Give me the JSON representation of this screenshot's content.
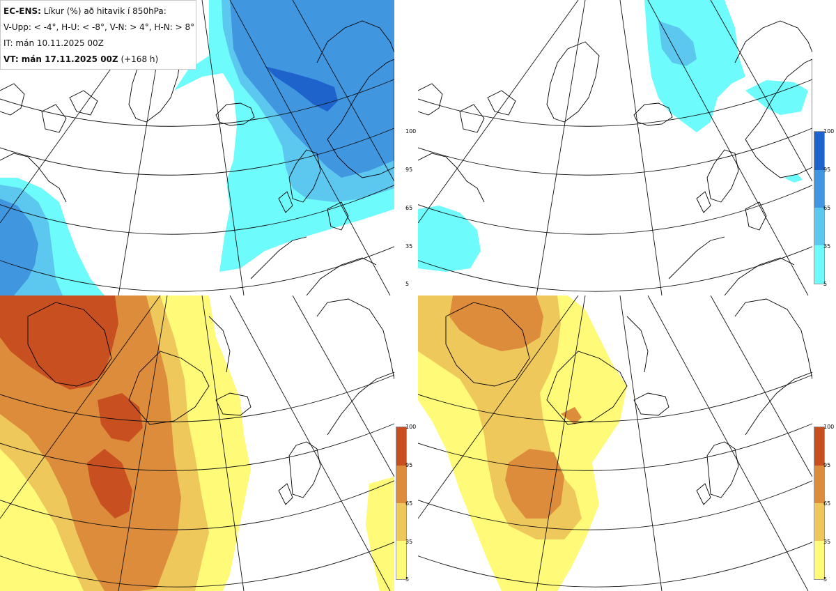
{
  "info": {
    "model": "EC-ENS:",
    "description": "Líkur (%) að hitavik í 850hPa:",
    "thresholds": "V-Upp: < -4°, H-U: < -8°, V-N: > 4°, H-N: > 8°",
    "init_time": "IT: mán 10.11.2025 00Z",
    "valid_time_label": "VT: mán 17.11.2025 00Z",
    "valid_time_lead": "(+168 h)"
  },
  "colorbar_ticks": [
    "100",
    "95",
    "65",
    "35",
    "5"
  ],
  "colors": {
    "cold_5": "#6efbfb",
    "cold_35": "#5cc8f0",
    "cold_65": "#4196e0",
    "cold_95": "#1e63cc",
    "warm_5": "#fffa78",
    "warm_35": "#eec85a",
    "warm_65": "#dd8c3c",
    "warm_95": "#c85020",
    "coast": "#000000",
    "grid": "#111111"
  },
  "panels": [
    {
      "id": "top-left",
      "palette": "cold",
      "meaning": "V-Upp"
    },
    {
      "id": "top-right",
      "palette": "cold",
      "meaning": "H-U"
    },
    {
      "id": "bottom-left",
      "palette": "warm",
      "meaning": "V-N"
    },
    {
      "id": "bottom-right",
      "palette": "warm",
      "meaning": "H-N"
    }
  ]
}
